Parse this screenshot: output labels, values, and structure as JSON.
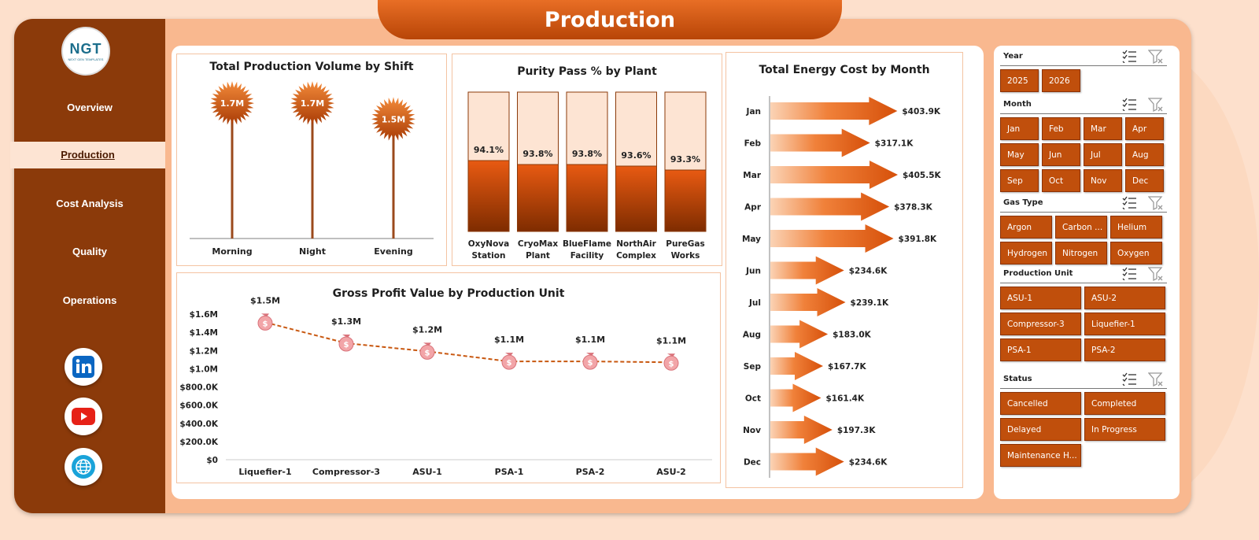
{
  "header": {
    "title": "Production"
  },
  "sidebar": {
    "logo_text": "NGT",
    "logo_sub": "NEXT GEN TEMPLATES",
    "items": [
      {
        "label": "Overview"
      },
      {
        "label": "Production",
        "active": true
      },
      {
        "label": "Cost Analysis"
      },
      {
        "label": "Quality"
      },
      {
        "label": "Operations"
      }
    ],
    "social": [
      "linkedin-icon",
      "youtube-icon",
      "globe-icon"
    ]
  },
  "colors": {
    "accent": "#c04f0c",
    "dark": "#8b3a0a",
    "light": "#fde4d3"
  },
  "chart_data": [
    {
      "id": "shift",
      "type": "lollipop",
      "title": "Total Production Volume by Shift",
      "categories": [
        "Morning",
        "Night",
        "Evening"
      ],
      "values": [
        1.7,
        1.7,
        1.5
      ],
      "labels": [
        "1.7M",
        "1.7M",
        "1.5M"
      ]
    },
    {
      "id": "purity",
      "type": "bar",
      "title": "Purity Pass % by Plant",
      "categories": [
        "OxyNova Station",
        "CryoMax Plant",
        "BlueFlame Facility",
        "NorthAir Complex",
        "PureGas Works"
      ],
      "values": [
        94.1,
        93.8,
        93.8,
        93.6,
        93.3
      ],
      "labels": [
        "94.1%",
        "93.8%",
        "93.8%",
        "93.6%",
        "93.3%"
      ]
    },
    {
      "id": "energy",
      "type": "bar",
      "orientation": "horizontal",
      "title": "Total Energy Cost by Month",
      "categories": [
        "Jan",
        "Feb",
        "Mar",
        "Apr",
        "May",
        "Jun",
        "Jul",
        "Aug",
        "Sep",
        "Oct",
        "Nov",
        "Dec"
      ],
      "values": [
        403.9,
        317.1,
        405.5,
        378.3,
        391.8,
        234.6,
        239.1,
        183.0,
        167.7,
        161.4,
        197.3,
        234.6
      ],
      "labels": [
        "$403.9K",
        "$317.1K",
        "$405.5K",
        "$378.3K",
        "$391.8K",
        "$234.6K",
        "$239.1K",
        "$183.0K",
        "$167.7K",
        "$161.4K",
        "$197.3K",
        "$234.6K"
      ]
    },
    {
      "id": "profit",
      "type": "line",
      "title": "Gross Profit Value by Production Unit",
      "categories": [
        "Liquefier-1",
        "Compressor-3",
        "ASU-1",
        "PSA-1",
        "PSA-2",
        "ASU-2"
      ],
      "values": [
        1.5,
        1.3,
        1.2,
        1.1,
        1.1,
        1.1
      ],
      "labels": [
        "$1.5M",
        "$1.3M",
        "$1.2M",
        "$1.1M",
        "$1.1M",
        "$1.1M"
      ],
      "ylim": [
        0,
        1.6
      ],
      "yticks": [
        "$0",
        "$200.0K",
        "$400.0K",
        "$600.0K",
        "$800.0K",
        "$1.0M",
        "$1.2M",
        "$1.4M",
        "$1.6M"
      ]
    }
  ],
  "filters": {
    "year": {
      "title": "Year",
      "options": [
        "2025",
        "2026"
      ]
    },
    "month": {
      "title": "Month",
      "options": [
        "Jan",
        "Feb",
        "Mar",
        "Apr",
        "May",
        "Jun",
        "Jul",
        "Aug",
        "Sep",
        "Oct",
        "Nov",
        "Dec"
      ]
    },
    "gas": {
      "title": "Gas Type",
      "options": [
        "Argon",
        "Carbon ...",
        "Helium",
        "Hydrogen",
        "Nitrogen",
        "Oxygen"
      ]
    },
    "unit": {
      "title": "Production Unit",
      "options": [
        "ASU-1",
        "ASU-2",
        "Compressor-3",
        "Liquefier-1",
        "PSA-1",
        "PSA-2"
      ]
    },
    "status": {
      "title": "Status",
      "options": [
        "Cancelled",
        "Completed",
        "Delayed",
        "In Progress",
        "Maintenance H..."
      ]
    }
  }
}
